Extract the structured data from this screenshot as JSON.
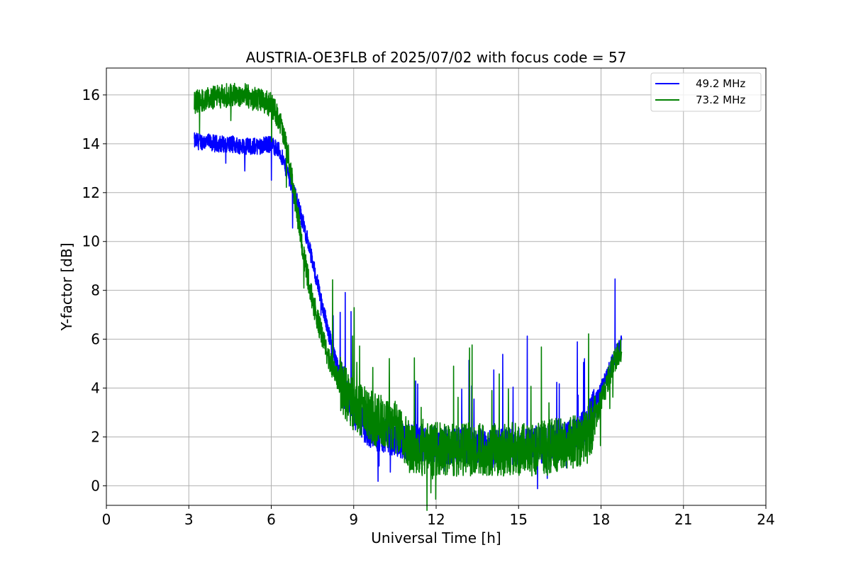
{
  "chart_data": {
    "type": "line",
    "title": "AUSTRIA-OE3FLB of 2025/07/02 with focus code = 57",
    "xlabel": "Universal Time [h]",
    "ylabel": "Y-factor [dB]",
    "xlim": [
      0,
      24
    ],
    "ylim": [
      -0.8,
      17.1
    ],
    "xticks": [
      0,
      3,
      6,
      9,
      12,
      15,
      18,
      21,
      24
    ],
    "yticks": [
      0,
      2,
      4,
      6,
      8,
      10,
      12,
      14,
      16
    ],
    "grid": true,
    "legend_position": "top-right",
    "series": [
      {
        "name": "49.2 MHz",
        "color": "#0000ff",
        "x": [
          3.2,
          3.5,
          4.0,
          4.5,
          5.0,
          5.5,
          6.0,
          6.3,
          6.6,
          6.9,
          7.2,
          7.5,
          7.8,
          8.1,
          8.4,
          8.7,
          9.0,
          9.5,
          10.0,
          10.5,
          11.0,
          11.5,
          12.0,
          12.5,
          13.0,
          13.5,
          14.0,
          14.5,
          15.0,
          15.5,
          16.0,
          16.5,
          17.0,
          17.5,
          17.8,
          18.1,
          18.4,
          18.6,
          18.75
        ],
        "y": [
          14.1,
          14.1,
          14.0,
          14.0,
          13.9,
          13.9,
          14.0,
          13.7,
          12.8,
          11.8,
          10.6,
          9.2,
          7.7,
          6.2,
          4.9,
          3.8,
          3.0,
          2.4,
          2.1,
          1.9,
          1.8,
          1.7,
          1.7,
          1.6,
          1.6,
          1.6,
          1.6,
          1.6,
          1.6,
          1.7,
          1.7,
          1.8,
          2.0,
          2.5,
          3.4,
          4.2,
          5.0,
          5.6,
          5.9
        ],
        "noise": 0.35
      },
      {
        "name": "73.2 MHz",
        "color": "#008000",
        "x": [
          3.2,
          3.5,
          4.0,
          4.5,
          5.0,
          5.5,
          6.0,
          6.3,
          6.6,
          6.9,
          7.2,
          7.5,
          7.8,
          8.1,
          8.4,
          8.7,
          9.0,
          9.5,
          10.0,
          10.5,
          11.0,
          11.5,
          12.0,
          12.5,
          13.0,
          13.5,
          14.0,
          14.5,
          15.0,
          15.5,
          16.0,
          16.5,
          17.0,
          17.5,
          17.8,
          18.1,
          18.4,
          18.6,
          18.75
        ],
        "y": [
          15.7,
          15.8,
          15.9,
          16.0,
          16.0,
          15.8,
          15.6,
          15.0,
          13.6,
          11.5,
          9.3,
          7.6,
          6.3,
          5.2,
          4.4,
          3.8,
          3.3,
          2.9,
          2.6,
          2.4,
          1.6,
          1.5,
          1.5,
          1.5,
          1.5,
          1.5,
          1.5,
          1.5,
          1.5,
          1.5,
          1.6,
          1.7,
          1.8,
          2.0,
          2.8,
          3.8,
          4.8,
          5.4,
          5.6
        ],
        "noise": 0.5
      }
    ]
  }
}
